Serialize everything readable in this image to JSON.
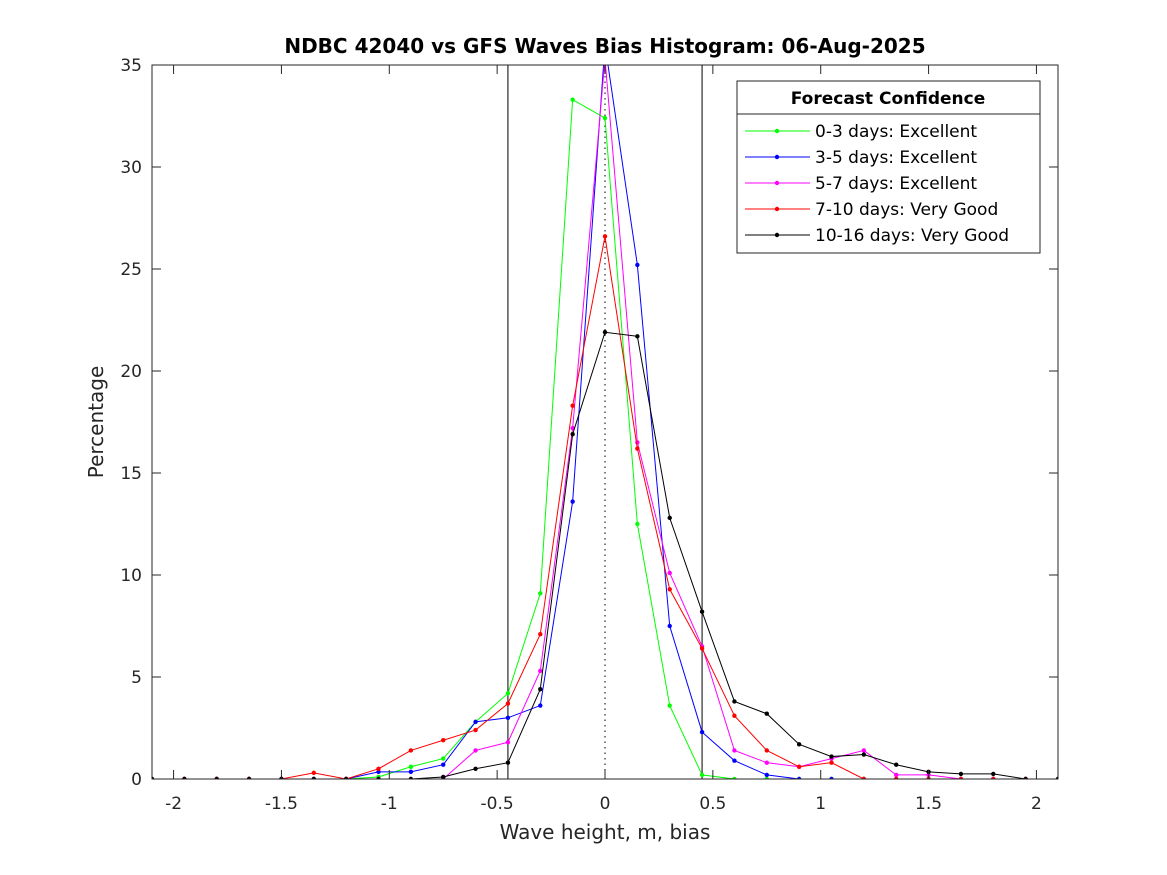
{
  "chart_data": {
    "type": "line",
    "title": "NDBC 42040 vs GFS Waves Bias Histogram: 06-Aug-2025",
    "xlabel": "Wave height, m, bias",
    "ylabel": "Percentage",
    "xlim": [
      -2.1,
      2.1
    ],
    "ylim": [
      0,
      35
    ],
    "xticks": [
      -2,
      -1.5,
      -1,
      -0.5,
      0,
      0.5,
      1,
      1.5,
      2
    ],
    "xtick_labels": [
      "-2",
      "-1.5",
      "-1",
      "-0.5",
      "0",
      "0.5",
      "1",
      "1.5",
      "2"
    ],
    "yticks": [
      0,
      5,
      10,
      15,
      20,
      25,
      30,
      35
    ],
    "ytick_labels": [
      "0",
      "5",
      "10",
      "15",
      "20",
      "25",
      "30",
      "35"
    ],
    "grid": false,
    "reference_lines": {
      "vertical_solid": [
        -0.45,
        0.45
      ],
      "vertical_dotted": [
        0
      ]
    },
    "legend": {
      "title": "Forecast Confidence",
      "position": "top-right"
    },
    "x": [
      -2.1,
      -1.95,
      -1.8,
      -1.65,
      -1.5,
      -1.35,
      -1.2,
      -1.05,
      -0.9,
      -0.75,
      -0.6,
      -0.45,
      -0.3,
      -0.15,
      0,
      0.15,
      0.3,
      0.45,
      0.6,
      0.75,
      0.9,
      1.05,
      1.2,
      1.35,
      1.5,
      1.65,
      1.8,
      1.95,
      2.1
    ],
    "series": [
      {
        "name": "0-3 days: Excellent",
        "color": "#00ff00",
        "values": [
          0,
          0,
          0,
          0,
          0,
          0,
          0,
          0.1,
          0.6,
          1.0,
          2.8,
          4.2,
          9.1,
          33.3,
          32.4,
          12.5,
          3.6,
          0.2,
          0,
          0,
          0,
          0,
          0,
          0,
          0,
          0,
          0,
          0,
          0
        ]
      },
      {
        "name": "3-5 days: Excellent",
        "color": "#0000ff",
        "values": [
          0,
          0,
          0,
          0,
          0,
          0,
          0,
          0.35,
          0.35,
          0.7,
          2.8,
          3.0,
          3.6,
          13.6,
          36.0,
          25.2,
          7.5,
          2.3,
          0.9,
          0.2,
          0,
          0,
          0,
          0,
          0,
          0,
          0,
          0,
          0
        ]
      },
      {
        "name": "5-7 days: Excellent",
        "color": "#ff00ff",
        "values": [
          0,
          0,
          0,
          0,
          0,
          0,
          0,
          0,
          0,
          0,
          1.4,
          1.8,
          5.3,
          17.2,
          35.3,
          16.5,
          10.1,
          6.5,
          1.4,
          0.8,
          0.6,
          1.0,
          1.4,
          0.2,
          0.2,
          0,
          0,
          0,
          0
        ]
      },
      {
        "name": "7-10 days: Very Good",
        "color": "#ff0000",
        "values": [
          0,
          0,
          0,
          0,
          0,
          0.3,
          0,
          0.5,
          1.4,
          1.9,
          2.4,
          3.7,
          7.1,
          18.3,
          26.6,
          16.2,
          9.3,
          6.4,
          3.1,
          1.4,
          0.6,
          0.8,
          0,
          0,
          0,
          0,
          0,
          0,
          0
        ]
      },
      {
        "name": "10-16 days: Very Good",
        "color": "#000000",
        "values": [
          0,
          0,
          0,
          0,
          0,
          0,
          0,
          0,
          0,
          0.1,
          0.5,
          0.8,
          4.4,
          16.9,
          21.9,
          21.7,
          12.8,
          8.2,
          3.8,
          3.2,
          1.7,
          1.1,
          1.2,
          0.7,
          0.35,
          0.25,
          0.25,
          0,
          0
        ]
      }
    ]
  }
}
